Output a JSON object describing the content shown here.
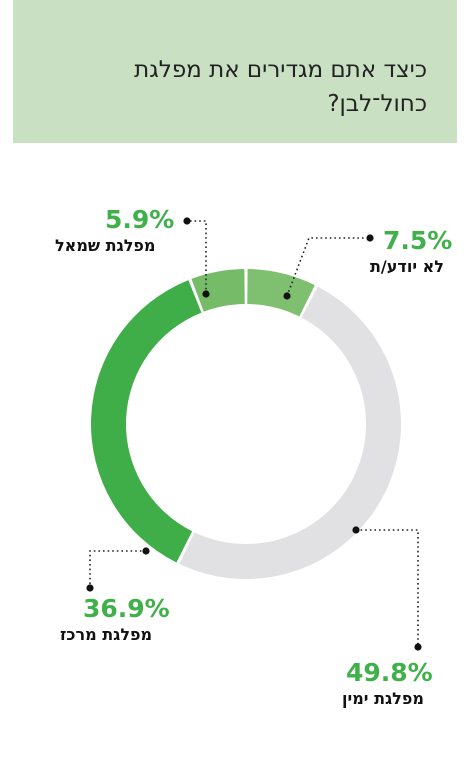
{
  "title": "כיצד אתם מגדירים את מפלגת כחול־לבן?",
  "colors": {
    "header_bg": "#c9e0c3",
    "dark_green": "#3fae48",
    "mid_green": "#75bb68",
    "light_green": "#7fc070",
    "gray": "#e1e1e3",
    "pct_text": "#3fb04a"
  },
  "chart_data": {
    "type": "pie",
    "donut": true,
    "slices": [
      {
        "label": "לא יודע/ת",
        "value": 7.5,
        "display": "7.5%",
        "color": "#7fc070"
      },
      {
        "label": "מפלגת ימין",
        "value": 49.8,
        "display": "49.8%",
        "color": "#e1e1e3"
      },
      {
        "label": "מפלגת מרכז",
        "value": 36.9,
        "display": "36.9%",
        "color": "#3fae48"
      },
      {
        "label": "מפלגת שמאל",
        "value": 5.9,
        "display": "5.9%",
        "color": "#75bb68"
      }
    ]
  }
}
